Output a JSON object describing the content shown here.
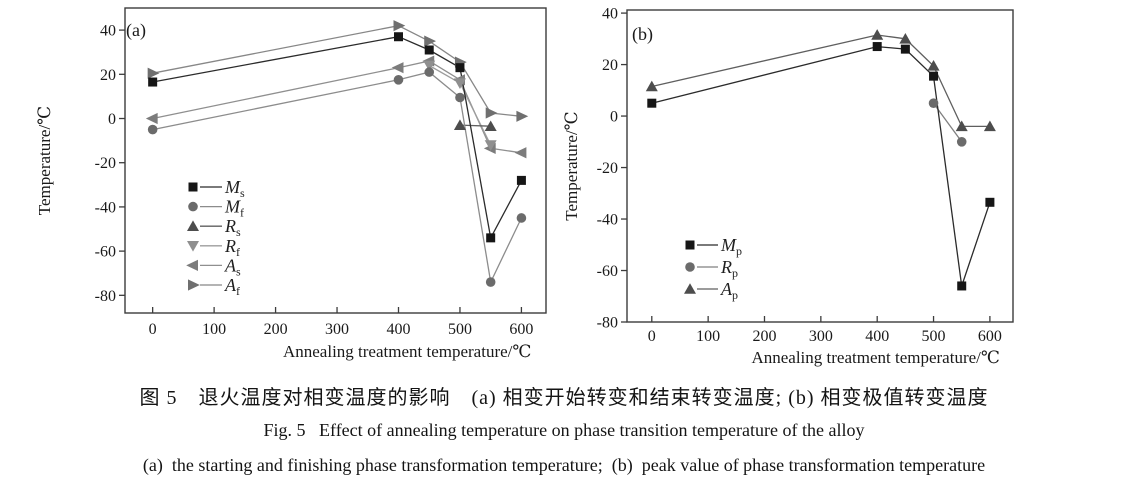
{
  "captions": {
    "chinese": "图 5　退火温度对相变温度的影响　(a) 相变开始转变和结束转变温度; (b) 相变极值转变温度",
    "english_title": "Fig. 5   Effect of annealing temperature on phase transition temperature of the alloy",
    "english_sub": "(a)  the starting and finishing phase transformation temperature;  (b)  peak value of phase transformation temperature"
  },
  "colors": {
    "axis": "#3c3c3c",
    "text": "#1a1a1a",
    "black_series": "#161616",
    "gray_series": "#6b6b6b"
  },
  "chart_data": [
    {
      "id": "chart-a",
      "type": "line",
      "panel_label": "(a)",
      "xlabel": "Annealing treatment temperature/℃",
      "ylabel": "Temperature/℃",
      "xlim": [
        -45,
        640
      ],
      "ylim": [
        -88,
        50
      ],
      "xticks": [
        0,
        100,
        200,
        300,
        400,
        500,
        600
      ],
      "yticks": [
        40,
        20,
        0,
        -20,
        -40,
        -60,
        -80
      ],
      "grid": false,
      "legend_position": "lower-left-inside",
      "series": [
        {
          "name": "Ms",
          "label_main": "M",
          "label_sub": "s",
          "marker": "square",
          "color": "#161616",
          "line_color": "#2b2b2b",
          "points": [
            [
              0,
              16.5
            ],
            [
              400,
              37
            ],
            [
              450,
              31
            ],
            [
              500,
              23
            ],
            [
              550,
              -54
            ],
            [
              600,
              -28
            ]
          ]
        },
        {
          "name": "Mf",
          "label_main": "M",
          "label_sub": "f",
          "marker": "circle",
          "color": "#6b6b6b",
          "line_color": "#8c8c8c",
          "points": [
            [
              0,
              -5
            ],
            [
              400,
              17.5
            ],
            [
              450,
              21
            ],
            [
              500,
              9.5
            ],
            [
              550,
              -74
            ],
            [
              600,
              -45
            ]
          ]
        },
        {
          "name": "Rs",
          "label_main": "R",
          "label_sub": "s",
          "marker": "triangle-up",
          "color": "#4d4d4d",
          "line_color": "#5f5f5f",
          "points": [
            [
              500,
              -3
            ],
            [
              550,
              -3.5
            ]
          ]
        },
        {
          "name": "Rf",
          "label_main": "R",
          "label_sub": "f",
          "marker": "triangle-down",
          "color": "#8f8f8f",
          "line_color": "#9d9d9d",
          "points": [
            [
              450,
              24
            ],
            [
              500,
              16
            ],
            [
              550,
              -12
            ]
          ]
        },
        {
          "name": "As",
          "label_main": "A",
          "label_sub": "s",
          "marker": "triangle-left",
          "color": "#7c7c7c",
          "line_color": "#8f8f8f",
          "points": [
            [
              0,
              0
            ],
            [
              400,
              23
            ],
            [
              450,
              26
            ],
            [
              500,
              17.5
            ],
            [
              550,
              -13.5
            ],
            [
              600,
              -15.5
            ]
          ]
        },
        {
          "name": "Af",
          "label_main": "A",
          "label_sub": "f",
          "marker": "triangle-right",
          "color": "#6f6f6f",
          "line_color": "#878787",
          "points": [
            [
              0,
              20.5
            ],
            [
              400,
              42
            ],
            [
              450,
              35
            ],
            [
              500,
              25.5
            ],
            [
              550,
              2.5
            ],
            [
              600,
              1
            ]
          ]
        }
      ]
    },
    {
      "id": "chart-b",
      "type": "line",
      "panel_label": "(b)",
      "xlabel": "Annealing treatment temperature/℃",
      "ylabel": "Temperature/℃",
      "xlim": [
        -44,
        641
      ],
      "ylim": [
        -80,
        41.2
      ],
      "xticks": [
        0,
        100,
        200,
        300,
        400,
        500,
        600
      ],
      "yticks": [
        40,
        20,
        0,
        -20,
        -40,
        -60,
        -80
      ],
      "grid": false,
      "legend_position": "lower-left-inside",
      "series": [
        {
          "name": "Mp",
          "label_main": "M",
          "label_sub": "p",
          "marker": "square",
          "color": "#161616",
          "line_color": "#2b2b2b",
          "points": [
            [
              0,
              5
            ],
            [
              400,
              27
            ],
            [
              450,
              26
            ],
            [
              500,
              15.5
            ],
            [
              550,
              -66
            ],
            [
              600,
              -33.5
            ]
          ]
        },
        {
          "name": "Rp",
          "label_main": "R",
          "label_sub": "p",
          "marker": "circle",
          "color": "#6b6b6b",
          "line_color": "#808080",
          "points": [
            [
              500,
              5
            ],
            [
              550,
              -10
            ]
          ]
        },
        {
          "name": "Ap",
          "label_main": "A",
          "label_sub": "p",
          "marker": "triangle-up",
          "color": "#4d4d4d",
          "line_color": "#5f5f5f",
          "points": [
            [
              0,
              11.5
            ],
            [
              400,
              31.5
            ],
            [
              450,
              30
            ],
            [
              500,
              19.5
            ],
            [
              550,
              -4
            ],
            [
              600,
              -4
            ]
          ]
        }
      ]
    }
  ]
}
